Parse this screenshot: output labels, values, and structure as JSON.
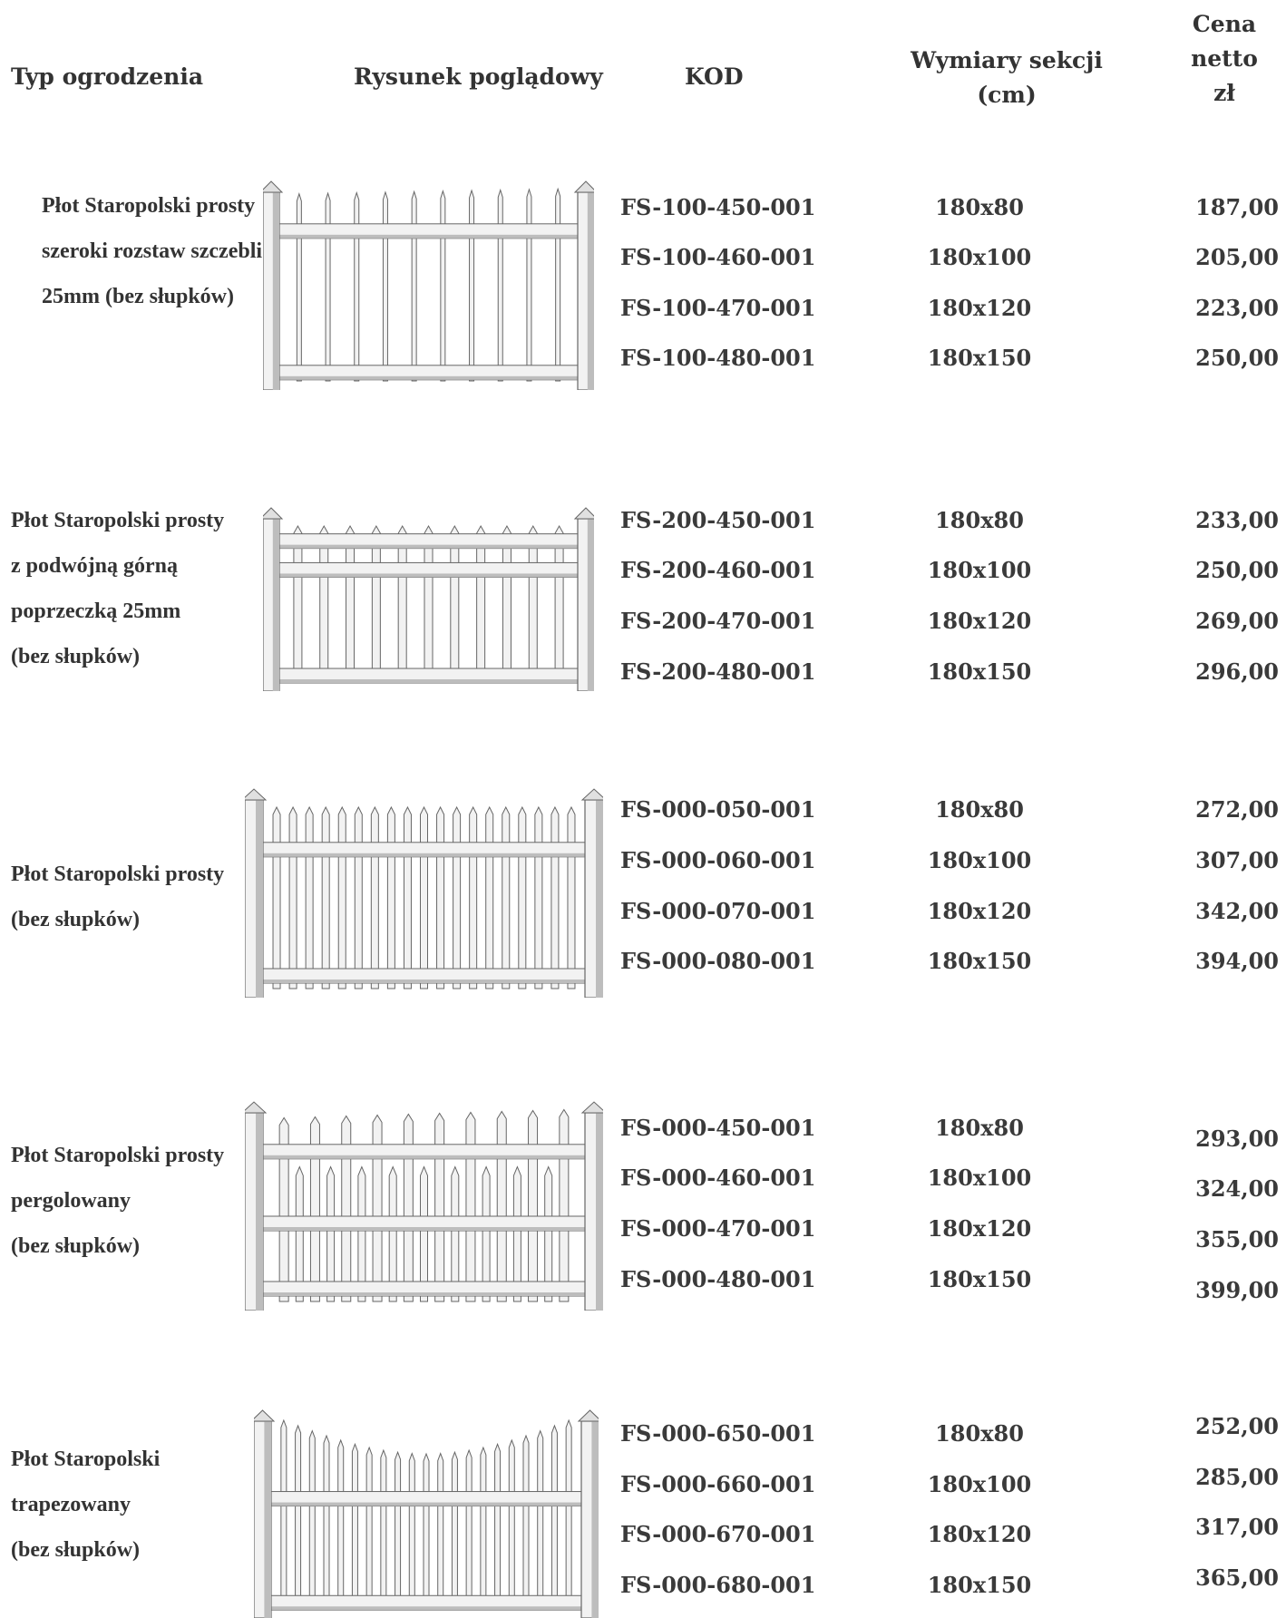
{
  "header": {
    "type": "Typ ogrodzenia",
    "drawing": "Rysunek poglądowy",
    "code": "KOD",
    "dims_line1": "Wymiary sekcji",
    "dims_line2": "(cm)",
    "price_line1": "Cena",
    "price_line2": "netto",
    "price_line3": "zł"
  },
  "fences": [
    {
      "type_lines": [
        "Płot Staropolski prosty",
        "szeroki rozstaw szczebli",
        "25mm (bez słupków)"
      ],
      "style": "wide-spaced",
      "rows": [
        {
          "code": "FS-100-450-001",
          "dims": "180x80",
          "price": "187,00"
        },
        {
          "code": "FS-100-460-001",
          "dims": "180x100",
          "price": "205,00"
        },
        {
          "code": "FS-100-470-001",
          "dims": "180x120",
          "price": "223,00"
        },
        {
          "code": "FS-100-480-001",
          "dims": "180x150",
          "price": "250,00"
        }
      ]
    },
    {
      "type_lines": [
        "Płot Staropolski prosty",
        "z podwójną górną",
        "poprzeczką 25mm",
        "(bez słupków)"
      ],
      "style": "double-top-rail",
      "rows": [
        {
          "code": "FS-200-450-001",
          "dims": "180x80",
          "price": "233,00"
        },
        {
          "code": "FS-200-460-001",
          "dims": "180x100",
          "price": "250,00"
        },
        {
          "code": "FS-200-470-001",
          "dims": "180x120",
          "price": "269,00"
        },
        {
          "code": "FS-200-480-001",
          "dims": "180x150",
          "price": "296,00"
        }
      ]
    },
    {
      "type_lines": [
        "Płot Staropolski prosty",
        "(bez słupków)"
      ],
      "style": "straight",
      "rows": [
        {
          "code": "FS-000-050-001",
          "dims": "180x80",
          "price": "272,00"
        },
        {
          "code": "FS-000-060-001",
          "dims": "180x100",
          "price": "307,00"
        },
        {
          "code": "FS-000-070-001",
          "dims": "180x120",
          "price": "342,00"
        },
        {
          "code": "FS-000-080-001",
          "dims": "180x150",
          "price": "394,00"
        }
      ]
    },
    {
      "type_lines": [
        "Płot Staropolski prosty",
        "pergolowany",
        "(bez słupków)"
      ],
      "style": "pergola",
      "rows": [
        {
          "code": "FS-000-450-001",
          "dims": "180x80",
          "price": "293,00"
        },
        {
          "code": "FS-000-460-001",
          "dims": "180x100",
          "price": "324,00"
        },
        {
          "code": "FS-000-470-001",
          "dims": "180x120",
          "price": "355,00"
        },
        {
          "code": "FS-000-480-001",
          "dims": "180x150",
          "price": "399,00"
        }
      ]
    },
    {
      "type_lines": [
        "Płot Staropolski",
        "trapezowany",
        "(bez słupków)"
      ],
      "style": "trapezoid",
      "rows": [
        {
          "code": "FS-000-650-001",
          "dims": "180x80",
          "price": "252,00"
        },
        {
          "code": "FS-000-660-001",
          "dims": "180x100",
          "price": "285,00"
        },
        {
          "code": "FS-000-670-001",
          "dims": "180x120",
          "price": "317,00"
        },
        {
          "code": "FS-000-680-001",
          "dims": "180x150",
          "price": "365,00"
        }
      ]
    }
  ]
}
